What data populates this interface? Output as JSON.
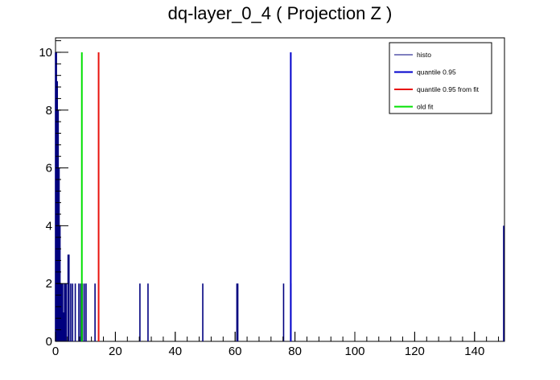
{
  "colors": {
    "histo": "#00007f",
    "quantile": "#0000cc",
    "quantile_fit": "#e8120c",
    "old_fit": "#00e000",
    "axis": "#000000",
    "background": "#ffffff"
  },
  "chart_data": {
    "type": "bar",
    "title": "dq-layer_0_4 ( Projection Z )",
    "xlabel": "",
    "ylabel": "",
    "xlim": [
      0,
      150
    ],
    "ylim": [
      0,
      10.5
    ],
    "x_ticks": [
      0,
      20,
      40,
      60,
      80,
      100,
      120,
      140
    ],
    "x_tick_labels": [
      "0",
      "20",
      "40",
      "60",
      "80",
      "100",
      "120",
      "140"
    ],
    "y_ticks": [
      0,
      2,
      4,
      6,
      8,
      10
    ],
    "y_tick_labels": [
      "0",
      "2",
      "4",
      "6",
      "8",
      "10"
    ],
    "grid": false,
    "legend_position": "top-right",
    "series": [
      {
        "name": "histo",
        "bins": [
          {
            "x": 0.0,
            "y": 10
          },
          {
            "x": 0.3,
            "y": 10
          },
          {
            "x": 0.6,
            "y": 9
          },
          {
            "x": 0.9,
            "y": 8
          },
          {
            "x": 1.2,
            "y": 6
          },
          {
            "x": 1.5,
            "y": 4
          },
          {
            "x": 1.8,
            "y": 2
          },
          {
            "x": 2.1,
            "y": 2
          },
          {
            "x": 2.4,
            "y": 2
          },
          {
            "x": 2.7,
            "y": 1
          },
          {
            "x": 3.0,
            "y": 2
          },
          {
            "x": 3.3,
            "y": 2
          },
          {
            "x": 3.6,
            "y": 2
          },
          {
            "x": 4.2,
            "y": 3
          },
          {
            "x": 4.5,
            "y": 3
          },
          {
            "x": 5.1,
            "y": 2
          },
          {
            "x": 5.7,
            "y": 2
          },
          {
            "x": 6.6,
            "y": 2
          },
          {
            "x": 7.8,
            "y": 2
          },
          {
            "x": 8.4,
            "y": 2
          },
          {
            "x": 9.0,
            "y": 2
          },
          {
            "x": 9.6,
            "y": 2
          },
          {
            "x": 10.2,
            "y": 2
          },
          {
            "x": 13.2,
            "y": 2
          },
          {
            "x": 28.2,
            "y": 2
          },
          {
            "x": 30.9,
            "y": 2
          },
          {
            "x": 49.2,
            "y": 2
          },
          {
            "x": 60.6,
            "y": 2
          },
          {
            "x": 60.9,
            "y": 2
          },
          {
            "x": 76.2,
            "y": 2
          },
          {
            "x": 78.6,
            "y": 2
          },
          {
            "x": 150.0,
            "y": 4
          }
        ]
      },
      {
        "name": "quantile 0.95",
        "x": 78.6,
        "height": 10
      },
      {
        "name": "quantile 0.95 from fit",
        "x": 14.4,
        "height": 10
      },
      {
        "name": "old fit",
        "x": 8.8,
        "height": 10
      }
    ]
  }
}
